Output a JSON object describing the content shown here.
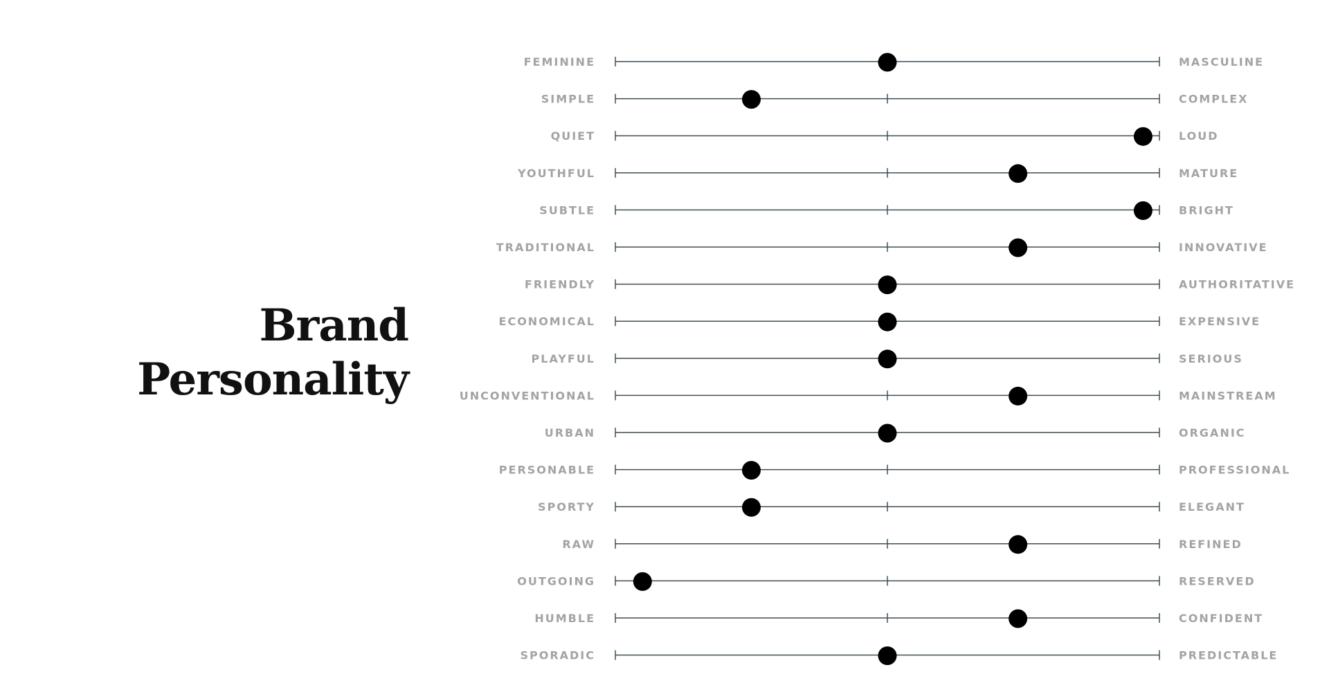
{
  "title": {
    "line1": "Brand",
    "line2": "Personality"
  },
  "colors": {
    "label": "#a3a3a3",
    "track": "#3f4d55",
    "marker": "#000000",
    "title": "#111111"
  },
  "chart_data": {
    "type": "scatter",
    "scale": [
      0,
      100
    ],
    "grid": "center tick on each track",
    "traits": [
      {
        "left": "FEMININE",
        "right": "MASCULINE",
        "value": 50
      },
      {
        "left": "SIMPLE",
        "right": "COMPLEX",
        "value": 25
      },
      {
        "left": "QUIET",
        "right": "LOUD",
        "value": 97
      },
      {
        "left": "YOUTHFUL",
        "right": "MATURE",
        "value": 74
      },
      {
        "left": "SUBTLE",
        "right": "BRIGHT",
        "value": 97
      },
      {
        "left": "TRADITIONAL",
        "right": "INNOVATIVE",
        "value": 74
      },
      {
        "left": "FRIENDLY",
        "right": "AUTHORITATIVE",
        "value": 50
      },
      {
        "left": "ECONOMICAL",
        "right": "EXPENSIVE",
        "value": 50
      },
      {
        "left": "PLAYFUL",
        "right": "SERIOUS",
        "value": 50
      },
      {
        "left": "UNCONVENTIONAL",
        "right": "MAINSTREAM",
        "value": 74
      },
      {
        "left": "URBAN",
        "right": "ORGANIC",
        "value": 50
      },
      {
        "left": "PERSONABLE",
        "right": "PROFESSIONAL",
        "value": 25
      },
      {
        "left": "SPORTY",
        "right": "ELEGANT",
        "value": 25
      },
      {
        "left": "RAW",
        "right": "REFINED",
        "value": 74
      },
      {
        "left": "OUTGOING",
        "right": "RESERVED",
        "value": 5
      },
      {
        "left": "HUMBLE",
        "right": "CONFIDENT",
        "value": 74
      },
      {
        "left": "SPORADIC",
        "right": "PREDICTABLE",
        "value": 50
      }
    ]
  }
}
